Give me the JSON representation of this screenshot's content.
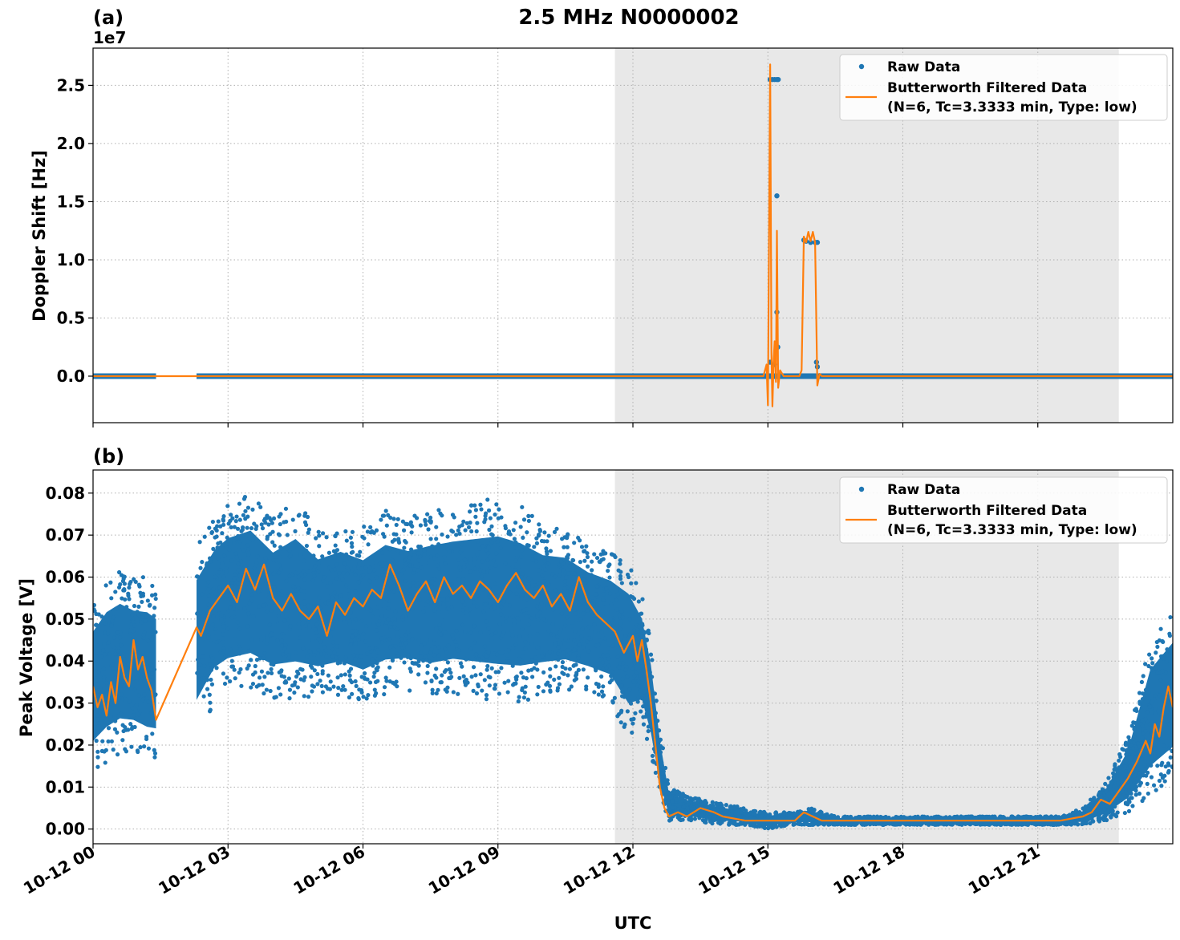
{
  "figure": {
    "title": "2.5 MHz N0000002",
    "xlabel": "UTC"
  },
  "colors": {
    "raw": "#1f77b4",
    "filtered": "#ff7f0e",
    "night_shade": "#e8e8e8",
    "grid": "#b0b0b0"
  },
  "legend": {
    "raw": "Raw Data",
    "filtered_line1": "Butterworth Filtered Data",
    "filtered_line2": "(N=6, Tc=3.3333 min, Type: low)",
    "placement": "top-right"
  },
  "chart_data": [
    {
      "type": "scatter",
      "panel_label": "(a)",
      "ylabel": "Doppler Shift [Hz]",
      "offset_text": "1e7",
      "ylim": [
        -0.4,
        2.82
      ],
      "yticks": [
        0.0,
        0.5,
        1.0,
        1.5,
        2.0,
        2.5
      ],
      "ytick_labels": [
        "0.0",
        "0.5",
        "1.0",
        "1.5",
        "2.0",
        "2.5"
      ],
      "xlim_hours": [
        0,
        24
      ],
      "shaded_hours": [
        11.6,
        22.8
      ],
      "gap_hours": [
        1.4,
        2.3
      ],
      "series": [
        {
          "name": "Raw Data",
          "baseline": 0.0,
          "outliers_hours": [
            [
              15.05,
              2.55
            ],
            [
              15.1,
              2.55
            ],
            [
              15.15,
              2.55
            ],
            [
              15.2,
              2.55
            ],
            [
              15.23,
              2.55
            ],
            [
              15.2,
              1.55
            ],
            [
              15.2,
              0.55
            ],
            [
              15.22,
              0.25
            ],
            [
              15.05,
              0.12
            ],
            [
              15.15,
              0.1
            ],
            [
              15.8,
              1.17
            ],
            [
              15.85,
              1.16
            ],
            [
              15.95,
              1.15
            ],
            [
              16.05,
              1.15
            ],
            [
              16.1,
              1.15
            ],
            [
              16.08,
              0.12
            ],
            [
              16.1,
              0.08
            ],
            [
              15.75,
              0.0
            ],
            [
              16.1,
              0.0
            ]
          ]
        },
        {
          "name": "Butterworth Filtered Data",
          "points_hours": [
            [
              0,
              0
            ],
            [
              14.9,
              0
            ],
            [
              14.97,
              0.1
            ],
            [
              15.0,
              -0.25
            ],
            [
              15.05,
              2.68
            ],
            [
              15.08,
              0.2
            ],
            [
              15.1,
              -0.26
            ],
            [
              15.13,
              0.15
            ],
            [
              15.15,
              0.3
            ],
            [
              15.18,
              -0.05
            ],
            [
              15.2,
              1.25
            ],
            [
              15.23,
              -0.1
            ],
            [
              15.27,
              0.05
            ],
            [
              15.35,
              0
            ],
            [
              15.7,
              0
            ],
            [
              15.75,
              0.05
            ],
            [
              15.8,
              1.2
            ],
            [
              15.85,
              1.15
            ],
            [
              15.9,
              1.24
            ],
            [
              15.95,
              1.16
            ],
            [
              16.0,
              1.24
            ],
            [
              16.05,
              1.15
            ],
            [
              16.1,
              -0.08
            ],
            [
              16.15,
              0.02
            ],
            [
              16.2,
              0
            ],
            [
              24,
              0
            ]
          ]
        }
      ]
    },
    {
      "type": "scatter",
      "panel_label": "(b)",
      "ylabel": "Peak Voltage [V]",
      "ylim": [
        -0.0035,
        0.0855
      ],
      "yticks": [
        0.0,
        0.01,
        0.02,
        0.03,
        0.04,
        0.05,
        0.06,
        0.07,
        0.08
      ],
      "ytick_labels": [
        "0.00",
        "0.01",
        "0.02",
        "0.03",
        "0.04",
        "0.05",
        "0.06",
        "0.07",
        "0.08"
      ],
      "xlim_hours": [
        0,
        24
      ],
      "shaded_hours": [
        11.6,
        22.8
      ],
      "gap_hours": [
        1.4,
        2.3
      ],
      "series": [
        {
          "name": "Raw Data",
          "envelope_hours": [
            [
              0.0,
              0.013,
              0.055
            ],
            [
              0.3,
              0.016,
              0.06
            ],
            [
              0.6,
              0.018,
              0.062
            ],
            [
              0.9,
              0.018,
              0.06
            ],
            [
              1.2,
              0.016,
              0.06
            ],
            [
              1.4,
              0.016,
              0.058
            ],
            [
              2.3,
              0.022,
              0.068
            ],
            [
              2.7,
              0.03,
              0.075
            ],
            [
              3.0,
              0.032,
              0.078
            ],
            [
              3.5,
              0.033,
              0.08
            ],
            [
              4.0,
              0.031,
              0.074
            ],
            [
              4.5,
              0.031,
              0.078
            ],
            [
              5.0,
              0.031,
              0.072
            ],
            [
              5.5,
              0.032,
              0.074
            ],
            [
              6.0,
              0.03,
              0.072
            ],
            [
              6.5,
              0.032,
              0.076
            ],
            [
              7.0,
              0.033,
              0.074
            ],
            [
              7.5,
              0.031,
              0.076
            ],
            [
              8.0,
              0.032,
              0.077
            ],
            [
              8.5,
              0.031,
              0.078
            ],
            [
              9.0,
              0.03,
              0.079
            ],
            [
              9.5,
              0.03,
              0.077
            ],
            [
              10.0,
              0.032,
              0.073
            ],
            [
              10.5,
              0.033,
              0.072
            ],
            [
              11.0,
              0.032,
              0.068
            ],
            [
              11.5,
              0.03,
              0.066
            ],
            [
              11.9,
              0.022,
              0.064
            ],
            [
              12.2,
              0.025,
              0.056
            ],
            [
              12.4,
              0.018,
              0.044
            ],
            [
              12.6,
              0.008,
              0.024
            ],
            [
              12.8,
              0.002,
              0.01
            ],
            [
              13.2,
              0.002,
              0.008
            ],
            [
              14.0,
              0.001,
              0.006
            ],
            [
              14.5,
              0.001,
              0.005
            ],
            [
              15.0,
              0.0,
              0.004
            ],
            [
              15.5,
              0.001,
              0.004
            ],
            [
              16.0,
              0.001,
              0.005
            ],
            [
              16.5,
              0.001,
              0.003
            ],
            [
              18.0,
              0.001,
              0.003
            ],
            [
              20.0,
              0.001,
              0.003
            ],
            [
              21.5,
              0.001,
              0.003
            ],
            [
              22.0,
              0.001,
              0.005
            ],
            [
              22.5,
              0.002,
              0.011
            ],
            [
              23.0,
              0.004,
              0.022
            ],
            [
              23.5,
              0.008,
              0.045
            ],
            [
              24.0,
              0.012,
              0.052
            ]
          ]
        },
        {
          "name": "Butterworth Filtered Data",
          "points_hours": [
            [
              0.0,
              0.034
            ],
            [
              0.1,
              0.029
            ],
            [
              0.2,
              0.032
            ],
            [
              0.3,
              0.027
            ],
            [
              0.4,
              0.035
            ],
            [
              0.5,
              0.03
            ],
            [
              0.6,
              0.041
            ],
            [
              0.7,
              0.036
            ],
            [
              0.8,
              0.034
            ],
            [
              0.9,
              0.045
            ],
            [
              1.0,
              0.038
            ],
            [
              1.1,
              0.041
            ],
            [
              1.2,
              0.036
            ],
            [
              1.3,
              0.033
            ],
            [
              1.4,
              0.026
            ],
            [
              2.3,
              0.048
            ],
            [
              2.4,
              0.046
            ],
            [
              2.6,
              0.052
            ],
            [
              2.8,
              0.055
            ],
            [
              3.0,
              0.058
            ],
            [
              3.2,
              0.054
            ],
            [
              3.4,
              0.062
            ],
            [
              3.6,
              0.057
            ],
            [
              3.8,
              0.063
            ],
            [
              4.0,
              0.055
            ],
            [
              4.2,
              0.052
            ],
            [
              4.4,
              0.056
            ],
            [
              4.6,
              0.052
            ],
            [
              4.8,
              0.05
            ],
            [
              5.0,
              0.053
            ],
            [
              5.2,
              0.046
            ],
            [
              5.4,
              0.054
            ],
            [
              5.6,
              0.051
            ],
            [
              5.8,
              0.055
            ],
            [
              6.0,
              0.053
            ],
            [
              6.2,
              0.057
            ],
            [
              6.4,
              0.055
            ],
            [
              6.6,
              0.063
            ],
            [
              6.8,
              0.058
            ],
            [
              7.0,
              0.052
            ],
            [
              7.2,
              0.056
            ],
            [
              7.4,
              0.059
            ],
            [
              7.6,
              0.054
            ],
            [
              7.8,
              0.06
            ],
            [
              8.0,
              0.056
            ],
            [
              8.2,
              0.058
            ],
            [
              8.4,
              0.055
            ],
            [
              8.6,
              0.059
            ],
            [
              8.8,
              0.057
            ],
            [
              9.0,
              0.054
            ],
            [
              9.2,
              0.058
            ],
            [
              9.4,
              0.061
            ],
            [
              9.6,
              0.057
            ],
            [
              9.8,
              0.055
            ],
            [
              10.0,
              0.058
            ],
            [
              10.2,
              0.053
            ],
            [
              10.4,
              0.056
            ],
            [
              10.6,
              0.052
            ],
            [
              10.8,
              0.06
            ],
            [
              11.0,
              0.054
            ],
            [
              11.2,
              0.051
            ],
            [
              11.4,
              0.049
            ],
            [
              11.6,
              0.047
            ],
            [
              11.8,
              0.042
            ],
            [
              12.0,
              0.046
            ],
            [
              12.1,
              0.04
            ],
            [
              12.2,
              0.045
            ],
            [
              12.3,
              0.038
            ],
            [
              12.4,
              0.03
            ],
            [
              12.5,
              0.02
            ],
            [
              12.6,
              0.01
            ],
            [
              12.7,
              0.005
            ],
            [
              12.8,
              0.003
            ],
            [
              13.0,
              0.004
            ],
            [
              13.2,
              0.003
            ],
            [
              13.5,
              0.005
            ],
            [
              13.8,
              0.004
            ],
            [
              14.0,
              0.003
            ],
            [
              14.5,
              0.002
            ],
            [
              15.0,
              0.002
            ],
            [
              15.3,
              0.002
            ],
            [
              15.6,
              0.002
            ],
            [
              15.8,
              0.004
            ],
            [
              16.0,
              0.003
            ],
            [
              16.2,
              0.002
            ],
            [
              17.0,
              0.002
            ],
            [
              18.0,
              0.002
            ],
            [
              19.0,
              0.002
            ],
            [
              20.0,
              0.002
            ],
            [
              21.0,
              0.002
            ],
            [
              21.5,
              0.002
            ],
            [
              22.0,
              0.003
            ],
            [
              22.2,
              0.004
            ],
            [
              22.4,
              0.007
            ],
            [
              22.6,
              0.006
            ],
            [
              22.8,
              0.009
            ],
            [
              23.0,
              0.012
            ],
            [
              23.2,
              0.016
            ],
            [
              23.4,
              0.021
            ],
            [
              23.5,
              0.018
            ],
            [
              23.6,
              0.025
            ],
            [
              23.7,
              0.022
            ],
            [
              23.8,
              0.029
            ],
            [
              23.9,
              0.034
            ],
            [
              24.0,
              0.029
            ]
          ]
        }
      ]
    }
  ],
  "xaxis": {
    "ticks_hours": [
      0,
      3,
      6,
      9,
      12,
      15,
      18,
      21
    ],
    "tick_labels": [
      "10-12 00",
      "10-12 03",
      "10-12 06",
      "10-12 09",
      "10-12 12",
      "10-12 15",
      "10-12 18",
      "10-12 21"
    ]
  }
}
